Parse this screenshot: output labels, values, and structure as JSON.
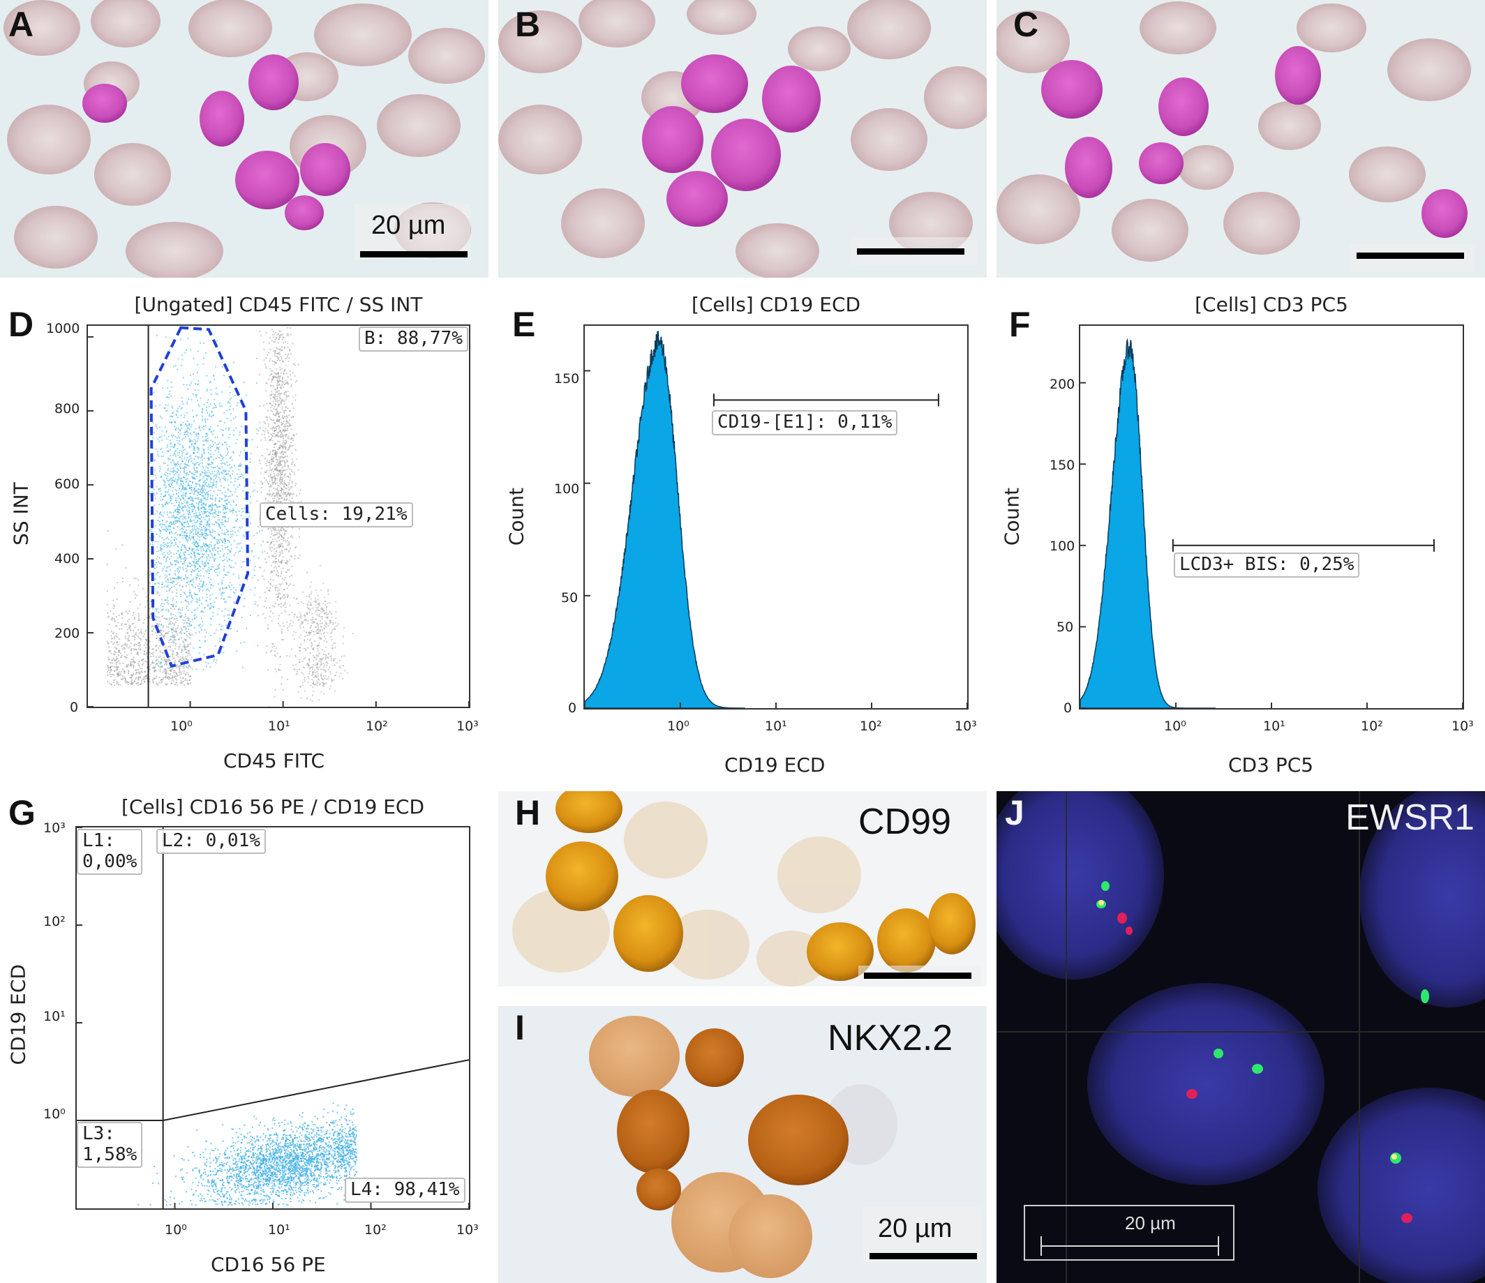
{
  "panels": {
    "A": {
      "letter": "A",
      "scale": "20 µm"
    },
    "B": {
      "letter": "B"
    },
    "C": {
      "letter": "C"
    },
    "D": {
      "letter": "D",
      "title": "[Ungated] CD45 FITC / SS INT",
      "xlabel": "CD45 FITC",
      "ylabel": "SS INT",
      "gates": {
        "b": "B: 88,77%",
        "cells": "Cells: 19,21%"
      }
    },
    "E": {
      "letter": "E",
      "title": "[Cells] CD19 ECD",
      "xlabel": "CD19 ECD",
      "ylabel": "Count",
      "gate": "CD19-[E1]: 0,11%"
    },
    "F": {
      "letter": "F",
      "title": "[Cells] CD3 PC5",
      "xlabel": "CD3 PC5",
      "ylabel": "Count",
      "gate": "LCD3+ BIS: 0,25%"
    },
    "G": {
      "letter": "G",
      "title": "[Cells] CD16 56 PE / CD19 ECD",
      "xlabel": "CD16 56 PE",
      "ylabel": "CD19 ECD",
      "quadrants": {
        "l1": "L1:",
        "l1v": "0,00%",
        "l2": "L2: 0,01%",
        "l3": "L3:",
        "l3v": "1,58%",
        "l4": "L4: 98,41%"
      }
    },
    "H": {
      "letter": "H",
      "stain": "CD99"
    },
    "I": {
      "letter": "I",
      "stain": "NKX2.2",
      "scale": "20 µm"
    },
    "J": {
      "letter": "J",
      "stain": "EWSR1",
      "scale": "20 µm"
    }
  },
  "colors": {
    "histogram_fill": "#0aa6e6",
    "gate_dash": "#1f3fd6",
    "dot_blue": "#3aaee6",
    "dot_gray": "#9a9a9a"
  },
  "chart_data": [
    {
      "panel": "D",
      "type": "scatter",
      "title": "[Ungated] CD45 FITC / SS INT",
      "xlabel": "CD45 FITC",
      "ylabel": "SS INT",
      "x_scale": "log",
      "xticks": [
        "10⁰",
        "10¹",
        "10²",
        "10³"
      ],
      "yticks": [
        "0",
        "200",
        "400",
        "600",
        "800",
        "1000"
      ],
      "ylim": [
        0,
        1000
      ],
      "gates": [
        "B: 88,77%",
        "Cells: 19,21%"
      ]
    },
    {
      "panel": "E",
      "type": "area",
      "title": "[Cells] CD19 ECD",
      "xlabel": "CD19 ECD",
      "ylabel": "Count",
      "x_scale": "log",
      "xticks": [
        "10⁰",
        "10¹",
        "10²",
        "10³"
      ],
      "yticks": [
        "0",
        "50",
        "100",
        "150"
      ],
      "ylim": [
        0,
        170
      ],
      "peak": {
        "x": 0.6,
        "y": 163
      },
      "gate": "CD19-[E1]: 0,11%"
    },
    {
      "panel": "F",
      "type": "area",
      "title": "[Cells] CD3 PC5",
      "xlabel": "CD3 PC5",
      "ylabel": "Count",
      "x_scale": "log",
      "xticks": [
        "10⁰",
        "10¹",
        "10²",
        "10³"
      ],
      "yticks": [
        "0",
        "50",
        "100",
        "150",
        "200"
      ],
      "ylim": [
        0,
        235
      ],
      "peak": {
        "x": 0.33,
        "y": 222
      },
      "gate": "LCD3+ BIS: 0,25%"
    },
    {
      "panel": "G",
      "type": "scatter",
      "title": "[Cells] CD16 56 PE / CD19 ECD",
      "xlabel": "CD16 56 PE",
      "ylabel": "CD19 ECD",
      "x_scale": "log",
      "y_scale": "log",
      "xticks": [
        "10⁰",
        "10¹",
        "10²",
        "10³"
      ],
      "yticks": [
        "10⁰",
        "10¹",
        "10²",
        "10³"
      ],
      "quadrants": [
        "L1: 0,00%",
        "L2: 0,01%",
        "L3: 1,58%",
        "L4: 98,41%"
      ]
    }
  ]
}
